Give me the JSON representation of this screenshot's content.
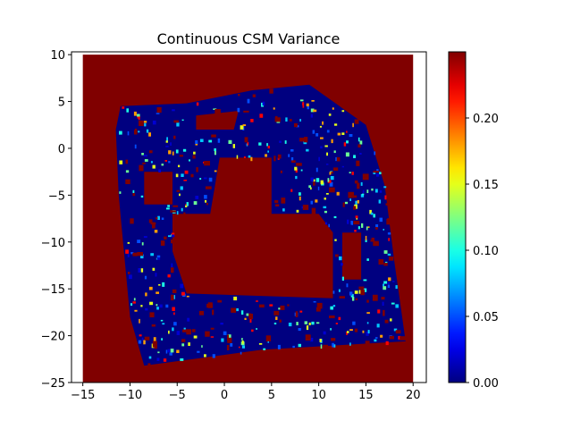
{
  "chart_data": {
    "type": "heatmap",
    "title": "Continuous CSM Variance",
    "xlabel": "",
    "ylabel": "",
    "xlim": [
      -16.2,
      21.4
    ],
    "ylim": [
      -25,
      10.3
    ],
    "map_extent": {
      "x": [
        -15,
        20
      ],
      "y": [
        -25,
        10
      ]
    },
    "x_ticks": [
      -15,
      -10,
      -5,
      0,
      5,
      10,
      15,
      20
    ],
    "x_tick_labels": [
      "−15",
      "−10",
      "−5",
      "0",
      "5",
      "10",
      "15",
      "20"
    ],
    "y_ticks": [
      10,
      5,
      0,
      -5,
      -10,
      -15,
      -20,
      -25
    ],
    "y_tick_labels": [
      "10",
      "5",
      "0",
      "−5",
      "−10",
      "−15",
      "−20",
      "−25"
    ],
    "colorbar": {
      "colormap": "jet",
      "range": [
        0,
        0.25
      ],
      "ticks": [
        0.0,
        0.05,
        0.1,
        0.15,
        0.2
      ],
      "tick_labels": [
        "0.00",
        "0.05",
        "0.10",
        "0.15",
        "0.20"
      ]
    },
    "background_value": 0.25,
    "low_variance_region": {
      "value": 0.0,
      "outer_polygon": [
        [
          -11,
          4.5
        ],
        [
          -4,
          4.8
        ],
        [
          3,
          6.2
        ],
        [
          9,
          6.8
        ],
        [
          15,
          2.5
        ],
        [
          17,
          -4
        ],
        [
          18,
          -12
        ],
        [
          19.2,
          -20.6
        ],
        [
          4,
          -21.5
        ],
        [
          -8.5,
          -23.2
        ],
        [
          -10,
          -18
        ],
        [
          -11.2,
          -5
        ],
        [
          -11.5,
          2
        ]
      ],
      "holes": [
        [
          [
            -0.5,
            -1
          ],
          [
            5,
            -1
          ],
          [
            5,
            -7
          ],
          [
            10,
            -7
          ],
          [
            11.5,
            -9
          ],
          [
            11.5,
            -16
          ],
          [
            -4,
            -15.5
          ],
          [
            -5.5,
            -11
          ],
          [
            -5.5,
            -7
          ],
          [
            -1.5,
            -7
          ]
        ],
        [
          [
            -3,
            3.5
          ],
          [
            1.5,
            4
          ],
          [
            1,
            2
          ],
          [
            -3,
            2
          ]
        ],
        [
          [
            12.5,
            -9
          ],
          [
            14.5,
            -9
          ],
          [
            14.5,
            -14
          ],
          [
            12.5,
            -14
          ]
        ],
        [
          [
            -8.5,
            -2.5
          ],
          [
            -5.5,
            -2.5
          ],
          [
            -5.5,
            -6
          ],
          [
            -8.5,
            -6
          ]
        ]
      ],
      "noise_values": [
        0.02,
        0.05,
        0.08,
        0.1,
        0.12,
        0.15,
        0.18,
        0.22
      ]
    }
  }
}
